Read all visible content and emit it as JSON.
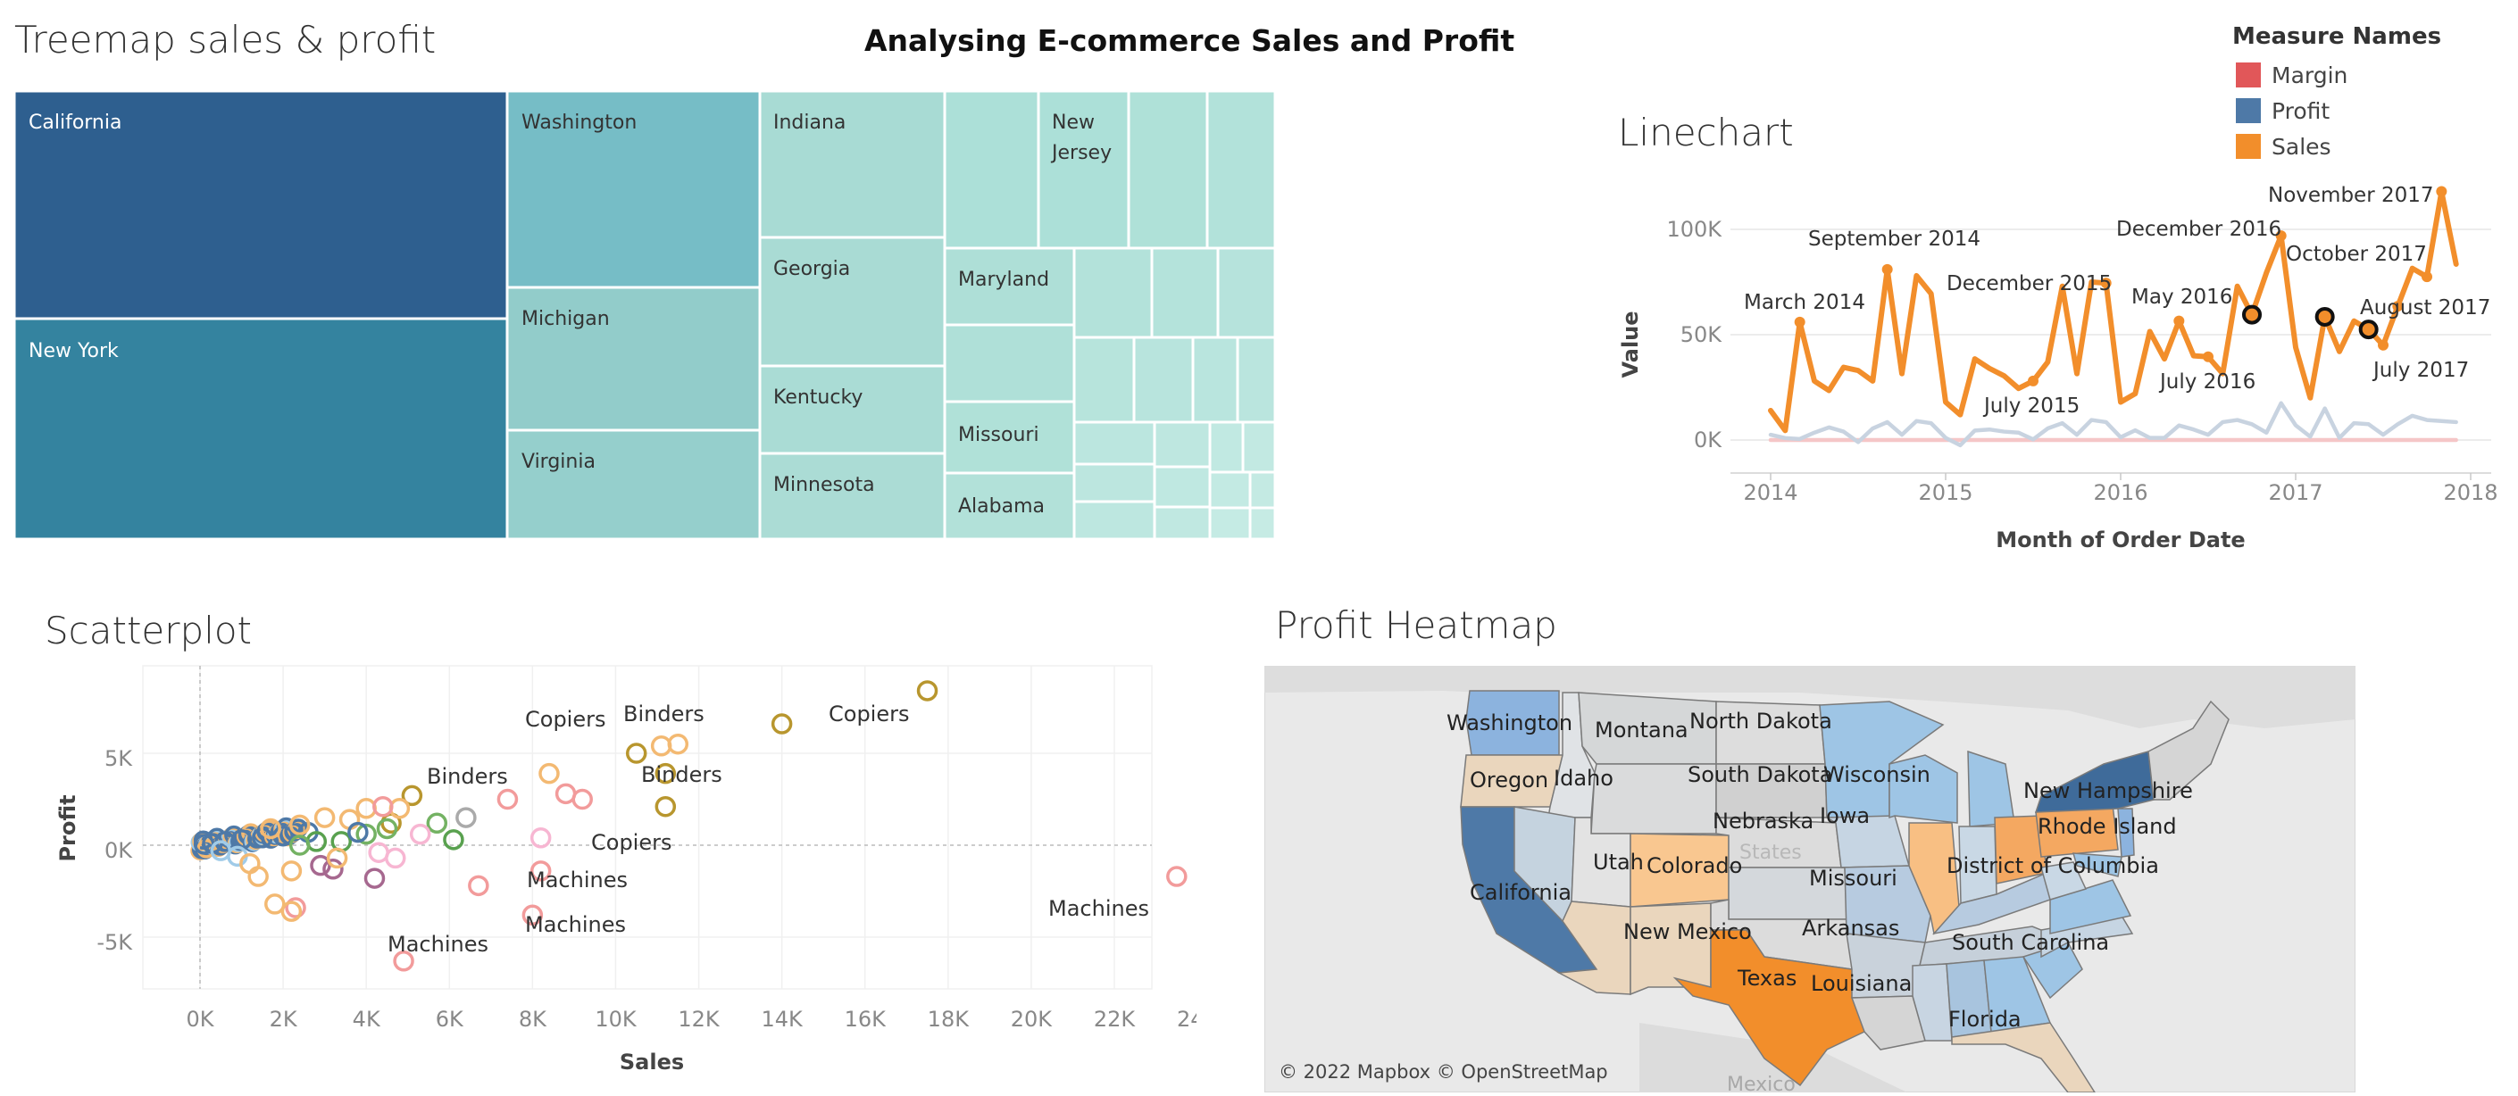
{
  "dashboard": {
    "title": "Analysing E-commerce Sales and Profit",
    "legend": {
      "title": "Measure Names",
      "items": [
        {
          "label": "Margin",
          "color": "#e15759"
        },
        {
          "label": "Profit",
          "color": "#4e79a7"
        },
        {
          "label": "Sales",
          "color": "#f28e2b"
        }
      ]
    }
  },
  "treemap": {
    "title": "Treemap sales & profit",
    "labeled_tiles": [
      {
        "name": "California",
        "color": "#2e5f8f"
      },
      {
        "name": "New York",
        "color": "#34839f"
      },
      {
        "name": "Washington",
        "color": "#76bdc6"
      },
      {
        "name": "Michigan",
        "color": "#92ccca"
      },
      {
        "name": "Virginia",
        "color": "#95cfcc"
      },
      {
        "name": "Indiana",
        "color": "#a8dbd4"
      },
      {
        "name": "Georgia",
        "color": "#a9dbd4"
      },
      {
        "name": "Kentucky",
        "color": "#aadcd5"
      },
      {
        "name": "Minnesota",
        "color": "#abdcd5"
      },
      {
        "name": "New\nJersey",
        "color": "#ace0d8"
      },
      {
        "name": "Maryland",
        "color": "#aedfd7"
      },
      {
        "name": "Missouri",
        "color": "#b0e1d8"
      },
      {
        "name": "Alabama",
        "color": "#b2e1d9"
      }
    ]
  },
  "linechart": {
    "title": "Linechart",
    "xlabel": "Month of Order Date",
    "ylabel": "Value",
    "y_ticks": [
      "100K",
      "50K",
      "0K"
    ],
    "x_ticks": [
      "2014",
      "2015",
      "2016",
      "2017",
      "2018"
    ],
    "annotations": [
      "March 2014",
      "September 2014",
      "December 2015",
      "July 2015",
      "May 2016",
      "July 2016",
      "December 2016",
      "October 2017",
      "November 2017",
      "August 2017",
      "July 2017"
    ]
  },
  "scatterplot": {
    "title": "Scatterplot",
    "xlabel": "Sales",
    "ylabel": "Profit",
    "x_ticks": [
      "0K",
      "2K",
      "4K",
      "6K",
      "8K",
      "10K",
      "12K",
      "14K",
      "16K",
      "18K",
      "20K",
      "22K",
      "24K"
    ],
    "y_ticks": [
      "5K",
      "0K",
      "-5K"
    ],
    "labels": [
      {
        "text": "Copiers"
      },
      {
        "text": "Binders"
      },
      {
        "text": "Copiers"
      },
      {
        "text": "Binders"
      },
      {
        "text": "Binders"
      },
      {
        "text": "Copiers"
      },
      {
        "text": "Machines"
      },
      {
        "text": "Machines"
      },
      {
        "text": "Machines"
      },
      {
        "text": "Machines"
      }
    ]
  },
  "heatmap": {
    "title": "Profit Heatmap",
    "attribution": "© 2022 Mapbox © OpenStreetMap",
    "faint_labels": [
      "States",
      "Mexico"
    ],
    "state_labels": [
      "Washington",
      "Montana",
      "North Dakota",
      "Oregon",
      "Idaho",
      "South Dakota",
      "Wisconsin",
      "New Hampshire",
      "Nebraska",
      "Iowa",
      "Rhode Island",
      "Utah",
      "Colorado",
      "Missouri",
      "District of Columbia",
      "California",
      "Arkansas",
      "New Mexico",
      "South Carolina",
      "Texas",
      "Louisiana",
      "Florida"
    ]
  },
  "chart_data": [
    {
      "type": "treemap",
      "title": "Treemap sales & profit",
      "tiles": [
        "California",
        "New York",
        "Washington",
        "Michigan",
        "Virginia",
        "Indiana",
        "Georgia",
        "Kentucky",
        "Minnesota",
        "New Jersey",
        "Maryland",
        "Missouri",
        "Alabama"
      ]
    },
    {
      "type": "line",
      "title": "Linechart",
      "xlabel": "Month of Order Date",
      "ylabel": "Value",
      "x_range": [
        "2014-01",
        "2018-01"
      ],
      "ylim": [
        -5000,
        120000
      ],
      "legend": "top-right",
      "series": [
        {
          "name": "Sales",
          "color": "#f28e2b",
          "x": [
            "2014-01",
            "2014-02",
            "2014-03",
            "2014-04",
            "2014-05",
            "2014-06",
            "2014-07",
            "2014-08",
            "2014-09",
            "2014-10",
            "2014-11",
            "2014-12",
            "2015-01",
            "2015-02",
            "2015-03",
            "2015-04",
            "2015-05",
            "2015-06",
            "2015-07",
            "2015-08",
            "2015-09",
            "2015-10",
            "2015-11",
            "2015-12",
            "2016-01",
            "2016-02",
            "2016-03",
            "2016-04",
            "2016-05",
            "2016-06",
            "2016-07",
            "2016-08",
            "2016-09",
            "2016-10",
            "2016-11",
            "2016-12",
            "2017-01",
            "2017-02",
            "2017-03",
            "2017-04",
            "2017-05",
            "2017-06",
            "2017-07",
            "2017-08",
            "2017-09",
            "2017-10",
            "2017-11",
            "2017-12"
          ],
          "values": [
            14000,
            4500,
            56000,
            28000,
            23500,
            34500,
            33000,
            28000,
            81000,
            31500,
            78000,
            69500,
            18000,
            12000,
            38500,
            34000,
            30500,
            24500,
            28000,
            37000,
            73000,
            31500,
            75000,
            74500,
            18000,
            22000,
            51500,
            38500,
            56500,
            40000,
            39500,
            31500,
            73000,
            59500,
            79500,
            97000,
            44000,
            20000,
            58500,
            42000,
            56500,
            52500,
            45000,
            63500,
            81500,
            77500,
            118000,
            83500
          ]
        },
        {
          "name": "Profit",
          "color": "#c8d3e0",
          "values": [
            2500,
            900,
            500,
            3500,
            6000,
            4000,
            -1000,
            5500,
            8500,
            2500,
            9000,
            8000,
            1000,
            -2500,
            4500,
            5000,
            4000,
            3500,
            300,
            5500,
            8000,
            2500,
            9500,
            8500,
            1300,
            4600,
            1000,
            1000,
            6900,
            5000,
            2500,
            8500,
            9500,
            7500,
            3500,
            17500,
            7000,
            1600,
            15000,
            1000,
            8000,
            7500,
            2500,
            7500,
            11500,
            9500,
            9000,
            8500
          ]
        },
        {
          "name": "Margin",
          "color": "#f5c6c7",
          "values": [
            0,
            0,
            0,
            0,
            0,
            0,
            0,
            0,
            0,
            0,
            0,
            0,
            0,
            0,
            0,
            0,
            0,
            0,
            0,
            0,
            0,
            0,
            0,
            0,
            0,
            0,
            0,
            0,
            0,
            0,
            0,
            0,
            0,
            0,
            0,
            0,
            0,
            0,
            0,
            0,
            0,
            0,
            0,
            0,
            0,
            0,
            0,
            0
          ]
        }
      ],
      "highlighted_points": [
        {
          "x": "2016-10",
          "value": 59500
        },
        {
          "x": "2017-03",
          "value": 58500
        },
        {
          "x": "2017-06",
          "value": 52500
        }
      ]
    },
    {
      "type": "scatter",
      "title": "Scatterplot",
      "xlabel": "Sales",
      "ylabel": "Profit",
      "xlim": [
        -1300,
        25000
      ],
      "ylim": [
        -6800,
        9600
      ],
      "points": [
        {
          "x": 17500,
          "y": 8400,
          "label": "Copiers",
          "color": "#b8962e"
        },
        {
          "x": 14000,
          "y": 6600,
          "label": "",
          "color": "#b8962e"
        },
        {
          "x": 10500,
          "y": 5000,
          "label": "",
          "color": "#b8962e"
        },
        {
          "x": 11200,
          "y": 3900,
          "label": "Binders",
          "color": "#b8962e"
        },
        {
          "x": 11200,
          "y": 2100,
          "label": "Copiers",
          "color": "#b8962e"
        },
        {
          "x": 11100,
          "y": 5400,
          "label": "",
          "color": "#f3b972"
        },
        {
          "x": 11500,
          "y": 5500,
          "label": "",
          "color": "#f3b972"
        },
        {
          "x": 8400,
          "y": 3900,
          "label": "",
          "color": "#f3b972"
        },
        {
          "x": 8800,
          "y": 2800,
          "label": "",
          "color": "#f29b9b"
        },
        {
          "x": 9200,
          "y": 2500,
          "label": "",
          "color": "#f29b9b"
        },
        {
          "x": 7400,
          "y": 2500,
          "label": "",
          "color": "#f29b9b"
        },
        {
          "x": 8200,
          "y": 400,
          "label": "",
          "color": "#f7b6d2"
        },
        {
          "x": 8200,
          "y": -1400,
          "label": "Machines",
          "color": "#f29b9b"
        },
        {
          "x": 8000,
          "y": -3800,
          "label": "Machines",
          "color": "#f29b9b"
        },
        {
          "x": 4900,
          "y": -6300,
          "label": "Machines",
          "color": "#f29b9b"
        },
        {
          "x": 23500,
          "y": -1700,
          "label": "Machines",
          "color": "#f29b9b"
        },
        {
          "x": 6700,
          "y": -2200,
          "label": "",
          "color": "#f29b9b"
        },
        {
          "x": 4200,
          "y": -1800,
          "label": "",
          "color": "#a6688f"
        },
        {
          "x": 5100,
          "y": 2700,
          "label": "",
          "color": "#b8962e"
        },
        {
          "x": 5700,
          "y": 1200,
          "label": "",
          "color": "#74b263"
        },
        {
          "x": 6100,
          "y": 300,
          "label": "",
          "color": "#59a14f"
        },
        {
          "x": 6400,
          "y": 1500,
          "label": "",
          "color": "#aaaaaa"
        },
        {
          "x": 3200,
          "y": -1300,
          "label": "",
          "color": "#a6688f"
        },
        {
          "x": 2900,
          "y": -1100,
          "label": "",
          "color": "#a6688f"
        },
        {
          "x": 2300,
          "y": -3400,
          "label": "",
          "color": "#f29b9b"
        },
        {
          "x": 2200,
          "y": -3600,
          "label": "",
          "color": "#f3b972"
        },
        {
          "x": 1800,
          "y": -3200,
          "label": "",
          "color": "#f3b972"
        },
        {
          "x": 3400,
          "y": 200,
          "label": "",
          "color": "#59a14f"
        },
        {
          "x": 4000,
          "y": 600,
          "label": "",
          "color": "#74b263"
        },
        {
          "x": 4600,
          "y": 1200,
          "label": "",
          "color": "#b8962e"
        },
        {
          "x": 4800,
          "y": 2000,
          "label": "",
          "color": "#f3b972"
        },
        {
          "x": 3600,
          "y": 1400,
          "label": "",
          "color": "#f3b972"
        },
        {
          "x": 4000,
          "y": 2000,
          "label": "",
          "color": "#f3b972"
        },
        {
          "x": 3000,
          "y": 1500,
          "label": "",
          "color": "#f3b972"
        },
        {
          "x": 2200,
          "y": -1400,
          "label": "",
          "color": "#f3b972"
        },
        {
          "x": 1400,
          "y": -1700,
          "label": "",
          "color": "#f3b972"
        },
        {
          "x": 2600,
          "y": 700,
          "label": "",
          "color": "#4e79a7"
        },
        {
          "x": 3800,
          "y": 700,
          "label": "",
          "color": "#4e79a7"
        },
        {
          "x": 2000,
          "y": 500,
          "label": "",
          "color": "#4e79a7"
        },
        {
          "x": 1500,
          "y": 400,
          "label": "",
          "color": "#4e79a7"
        },
        {
          "x": 1000,
          "y": 300,
          "label": "",
          "color": "#4e79a7"
        },
        {
          "x": 600,
          "y": 200,
          "label": "",
          "color": "#4e79a7"
        },
        {
          "x": 300,
          "y": 100,
          "label": "",
          "color": "#4e79a7"
        },
        {
          "x": 100,
          "y": 50,
          "label": "",
          "color": "#4e79a7"
        },
        {
          "x": 500,
          "y": -300,
          "label": "",
          "color": "#a0cbe8"
        },
        {
          "x": 900,
          "y": -600,
          "label": "",
          "color": "#a0cbe8"
        },
        {
          "x": 1200,
          "y": -1000,
          "label": "",
          "color": "#f3b972"
        },
        {
          "x": 1700,
          "y": 900,
          "label": "",
          "color": "#f3b972"
        },
        {
          "x": 2400,
          "y": 1100,
          "label": "",
          "color": "#f3b972"
        },
        {
          "x": 2800,
          "y": 200,
          "label": "",
          "color": "#59a14f"
        },
        {
          "x": 4300,
          "y": -400,
          "label": "",
          "color": "#f7b6d2"
        },
        {
          "x": 4700,
          "y": -700,
          "label": "",
          "color": "#f7b6d2"
        },
        {
          "x": 4500,
          "y": 900,
          "label": "",
          "color": "#74b263"
        },
        {
          "x": 5300,
          "y": 600,
          "label": "",
          "color": "#f7b6d2"
        },
        {
          "x": 2400,
          "y": 0,
          "label": "",
          "color": "#74b263"
        },
        {
          "x": 3300,
          "y": -700,
          "label": "",
          "color": "#f3b972"
        },
        {
          "x": 4400,
          "y": 2100,
          "label": "",
          "color": "#f29b9b"
        }
      ],
      "text_labels": [
        {
          "text": "Copiers",
          "x": 10500,
          "y": 5000
        },
        {
          "text": "Binders",
          "x": 14000,
          "y": 6600
        },
        {
          "text": "Binders",
          "x": 8400,
          "y": 3900
        }
      ]
    },
    {
      "type": "map",
      "title": "Profit Heatmap",
      "regions": [
        {
          "state": "Washington",
          "shade": "#6f9fcc"
        },
        {
          "state": "California",
          "shade": "#4e79a7"
        },
        {
          "state": "New York",
          "shade": "#3f6b9a"
        },
        {
          "state": "Texas",
          "shade": "#f28e2b"
        },
        {
          "state": "Ohio",
          "shade": "#f4a861"
        },
        {
          "state": "Pennsylvania",
          "shade": "#f4a861"
        },
        {
          "state": "Illinois",
          "shade": "#f8bf83"
        },
        {
          "state": "Colorado",
          "shade": "#f9c790"
        },
        {
          "state": "Oregon",
          "shade": "#ead6bd"
        },
        {
          "state": "Florida",
          "shade": "#ead6bd"
        },
        {
          "state": "Michigan",
          "shade": "#9ec5e5"
        },
        {
          "state": "Virginia",
          "shade": "#9ec5e5"
        },
        {
          "state": "Georgia",
          "shade": "#9ec5e5"
        }
      ]
    }
  ]
}
